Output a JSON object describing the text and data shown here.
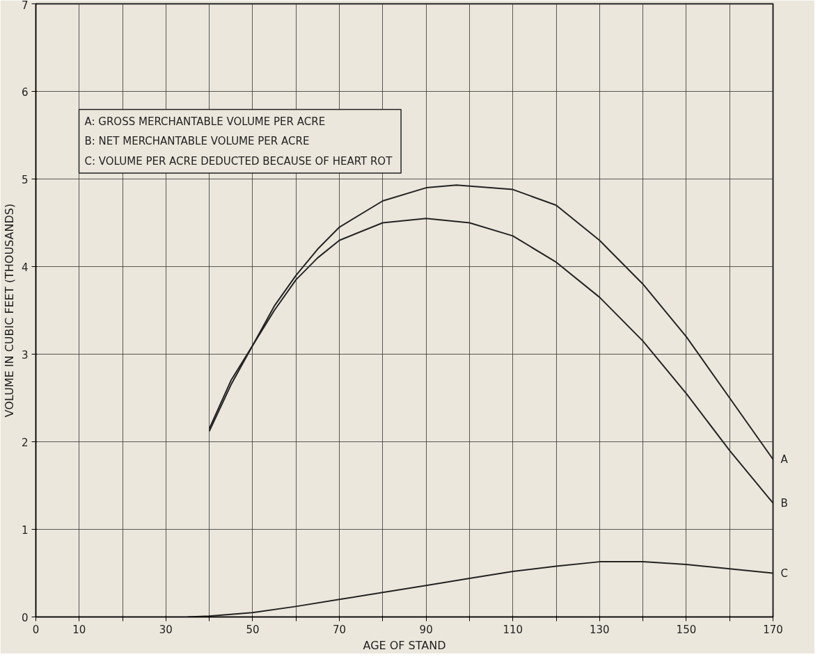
{
  "chart_data": {
    "type": "line",
    "xlabel": "AGE OF STAND",
    "ylabel": "VOLUME IN CUBIC FEET (THOUSANDS)",
    "xlim": [
      0,
      170
    ],
    "ylim": [
      0,
      7
    ],
    "xticks": [
      0,
      10,
      {
        "value": 20,
        "label": null
      },
      30,
      {
        "value": 40,
        "label": null
      },
      50,
      {
        "value": 60,
        "label": null
      },
      70,
      {
        "value": 80,
        "label": null
      },
      90,
      {
        "value": 100,
        "label": null
      },
      110,
      {
        "value": 120,
        "label": null
      },
      130,
      {
        "value": 140,
        "label": null
      },
      150,
      {
        "value": 160,
        "label": null
      },
      170
    ],
    "yticks": [
      0,
      1,
      2,
      3,
      4,
      5,
      6,
      7
    ],
    "grid": true,
    "marker": "none",
    "line_style": "solid",
    "annotations": [
      "A:  GROSS MERCHANTABLE VOLUME PER ACRE",
      "B:  NET MERCHANTABLE VOLUME PER ACRE",
      "C:  VOLUME PER ACRE DEDUCTED BECAUSE OF HEART ROT"
    ],
    "series": [
      {
        "name": "A",
        "color": "#222222",
        "x": [
          40,
          45,
          50,
          55,
          60,
          65,
          70,
          80,
          90,
          97,
          110,
          120,
          130,
          140,
          150,
          160,
          170
        ],
        "values": [
          2.15,
          2.7,
          3.1,
          3.55,
          3.9,
          4.2,
          4.45,
          4.75,
          4.9,
          4.93,
          4.88,
          4.7,
          4.3,
          3.8,
          3.2,
          2.5,
          1.8
        ]
      },
      {
        "name": "B",
        "color": "#222222",
        "x": [
          40,
          45,
          50,
          55,
          60,
          65,
          70,
          80,
          90,
          100,
          110,
          120,
          130,
          140,
          150,
          160,
          170
        ],
        "values": [
          2.12,
          2.65,
          3.1,
          3.5,
          3.85,
          4.1,
          4.3,
          4.5,
          4.55,
          4.5,
          4.35,
          4.05,
          3.65,
          3.15,
          2.55,
          1.9,
          1.3
        ]
      },
      {
        "name": "C",
        "color": "#222222",
        "x": [
          35,
          40,
          50,
          60,
          70,
          80,
          90,
          100,
          110,
          120,
          130,
          140,
          150,
          160,
          170
        ],
        "values": [
          0,
          0.01,
          0.05,
          0.12,
          0.2,
          0.28,
          0.36,
          0.44,
          0.52,
          0.58,
          0.63,
          0.63,
          0.6,
          0.55,
          0.5
        ]
      }
    ]
  }
}
